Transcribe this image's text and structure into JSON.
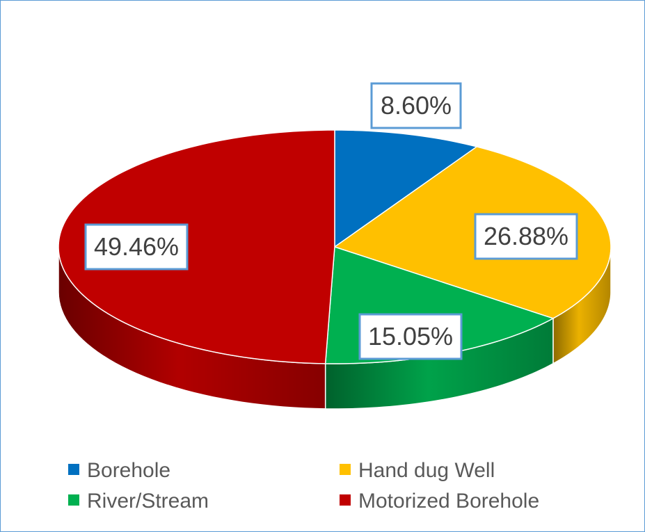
{
  "chart_data": {
    "type": "pie",
    "style": "3d",
    "title": "",
    "legend_position": "bottom",
    "slices": [
      {
        "label": "Borehole",
        "value": 8.6,
        "display": "8.60%",
        "color": "#0070c0"
      },
      {
        "label": "Hand dug Well",
        "value": 26.88,
        "display": "26.88%",
        "color": "#ffc000"
      },
      {
        "label": "River/Stream",
        "value": 15.05,
        "display": "15.05%",
        "color": "#00b050"
      },
      {
        "label": "Motorized Borehole",
        "value": 49.46,
        "display": "49.46%",
        "color": "#c00000"
      }
    ]
  }
}
